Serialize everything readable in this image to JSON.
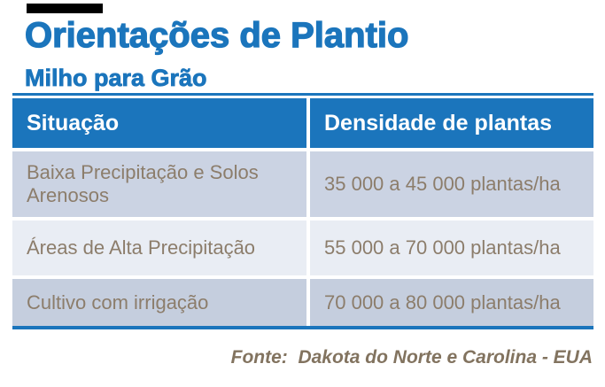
{
  "header": {
    "title": "Orientações de Plantio",
    "subtitle": "Milho para Grão"
  },
  "table": {
    "columns": [
      "Situação",
      "Densidade de plantas"
    ],
    "rows": [
      {
        "situacao": "Baixa Precipitação e Solos Arenosos",
        "densidade": "35 000 a 45 000 plantas/ha"
      },
      {
        "situacao": "Áreas de Alta Precipitação",
        "densidade": "55 000 a 70 000 plantas/ha"
      },
      {
        "situacao": "Cultivo com irrigação",
        "densidade": "70 000 a 80 000 plantas/ha"
      }
    ]
  },
  "footer": {
    "source": "Fonte:  Dakota do Norte e Carolina - EUA"
  },
  "colors": {
    "accent_blue": "#1B75BC",
    "header_text": "#FFFFFF",
    "row_1_bg": "#CBD3E3",
    "row_2_bg": "#E9EDF4",
    "row_3_bg": "#C5CEDE",
    "body_text": "#8C7D6B",
    "footer_text": "#82735F",
    "top_bar": "#000000"
  }
}
